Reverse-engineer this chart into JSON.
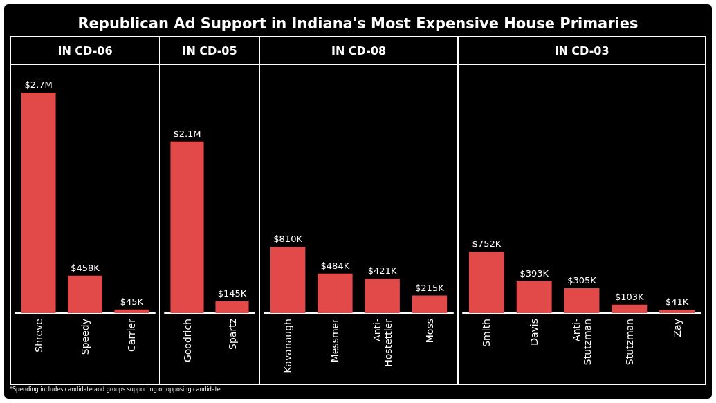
{
  "chart_data": [
    {
      "type": "bar",
      "title": "IN CD-06",
      "categories": [
        "Shreve",
        "Speedy",
        "Carrier"
      ],
      "values": [
        2700000,
        458000,
        45000
      ],
      "value_labels": [
        "$2.7M",
        "$458K",
        "$45K"
      ],
      "color": "#e24a4a",
      "annotations": [
        "Republican Ad Support in Indiana's Most Expensive House Primaries",
        "*Spending includes candidate and groups supporting or opposing candidate"
      ]
    },
    {
      "type": "bar",
      "title": "IN CD-05",
      "categories": [
        "Goodrich",
        "Spartz"
      ],
      "values": [
        2100000,
        145000
      ],
      "value_labels": [
        "$2.1M",
        "$145K"
      ],
      "color": "#e24a4a"
    },
    {
      "type": "bar",
      "title": "IN CD-08",
      "categories": [
        "Kavanaugh",
        "Messmer",
        "Anti-Hostettler",
        "Moss"
      ],
      "values": [
        810000,
        484000,
        421000,
        215000
      ],
      "value_labels": [
        "$810K",
        "$484K",
        "$421K",
        "$215K"
      ],
      "color": "#e24a4a"
    },
    {
      "type": "bar",
      "title": "IN CD-03",
      "categories": [
        "Smith",
        "Davis",
        "Anti-Stutzman",
        "Stutzman",
        "Zay"
      ],
      "values": [
        752000,
        393000,
        305000,
        103000,
        41000
      ],
      "value_labels": [
        "$752K",
        "$393K",
        "$305K",
        "$103K",
        "$41K"
      ],
      "color": "#e24a4a"
    }
  ]
}
